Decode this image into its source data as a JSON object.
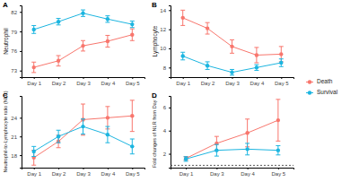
{
  "chart_data": [
    {
      "type": "line",
      "title": "A",
      "y_label": "Neutrophil",
      "legend": "right",
      "marker": "circle",
      "categories": [
        "Day 1",
        "Day 2",
        "Day 3",
        "Day 4",
        "Day 5"
      ],
      "ylim": [
        72,
        83
      ],
      "yticks": [
        73,
        76,
        79,
        82
      ],
      "series": [
        {
          "name": "Death",
          "color": "#F8766D",
          "values": [
            73.5,
            74.5,
            76.8,
            77.5,
            78.5
          ],
          "errors": [
            0.8,
            0.8,
            0.8,
            0.9,
            0.9
          ]
        },
        {
          "name": "Survival",
          "color": "#1CB5E0",
          "values": [
            79.3,
            80.5,
            81.8,
            80.9,
            80.1
          ],
          "errors": [
            0.6,
            0.5,
            0.5,
            0.5,
            0.5
          ]
        }
      ]
    },
    {
      "type": "line",
      "title": "B",
      "y_label": "Lymphocyte",
      "marker": "circle",
      "categories": [
        "Day 1",
        "Day 2",
        "Day 3",
        "Day 4",
        "Day 5"
      ],
      "ylim": [
        7,
        14.5
      ],
      "yticks": [
        8,
        10,
        12,
        14
      ],
      "series": [
        {
          "name": "Death",
          "color": "#F8766D",
          "values": [
            13.2,
            12.1,
            10.2,
            9.3,
            9.4
          ],
          "errors": [
            0.8,
            0.6,
            0.7,
            0.8,
            0.8
          ]
        },
        {
          "name": "Survival",
          "color": "#1CB5E0",
          "values": [
            9.2,
            8.2,
            7.5,
            8.0,
            8.5
          ],
          "errors": [
            0.4,
            0.4,
            0.3,
            0.3,
            0.4
          ]
        }
      ]
    },
    {
      "type": "line",
      "title": "C",
      "y_label": "Neutrophil-to-Lymphocyte ratio (NLR)",
      "marker": "circle",
      "categories": [
        "Day 1",
        "Day 2",
        "Day 3",
        "Day 4",
        "Day 5"
      ],
      "ylim": [
        16,
        27.5
      ],
      "yticks": [
        18,
        21,
        24
      ],
      "series": [
        {
          "name": "Death",
          "color": "#F8766D",
          "values": [
            17.6,
            20.2,
            23.7,
            24.0,
            24.3
          ],
          "errors": [
            1.2,
            1.0,
            2.5,
            1.8,
            2.5
          ]
        },
        {
          "name": "Survival",
          "color": "#1CB5E0",
          "values": [
            18.6,
            21.0,
            22.6,
            21.3,
            19.4
          ],
          "errors": [
            0.8,
            1.0,
            1.2,
            1.3,
            1.2
          ]
        }
      ]
    },
    {
      "type": "line",
      "title": "D",
      "y_label": "Fold changes of NLR from Day 1",
      "marker": "circle",
      "categories": [
        "Day 1",
        "Day 3",
        "Day 4",
        "Day 5"
      ],
      "ylim": [
        0.8,
        7
      ],
      "yticks": [
        2,
        4,
        6
      ],
      "hline": 1,
      "series": [
        {
          "name": "Death",
          "color": "#F8766D",
          "values": [
            1.6,
            2.9,
            3.8,
            4.9
          ],
          "errors": [
            0.15,
            0.6,
            1.2,
            1.8
          ]
        },
        {
          "name": "Survival",
          "color": "#1CB5E0",
          "values": [
            1.55,
            2.3,
            2.4,
            2.3
          ],
          "errors": [
            0.2,
            0.5,
            0.5,
            0.4
          ]
        }
      ]
    }
  ]
}
